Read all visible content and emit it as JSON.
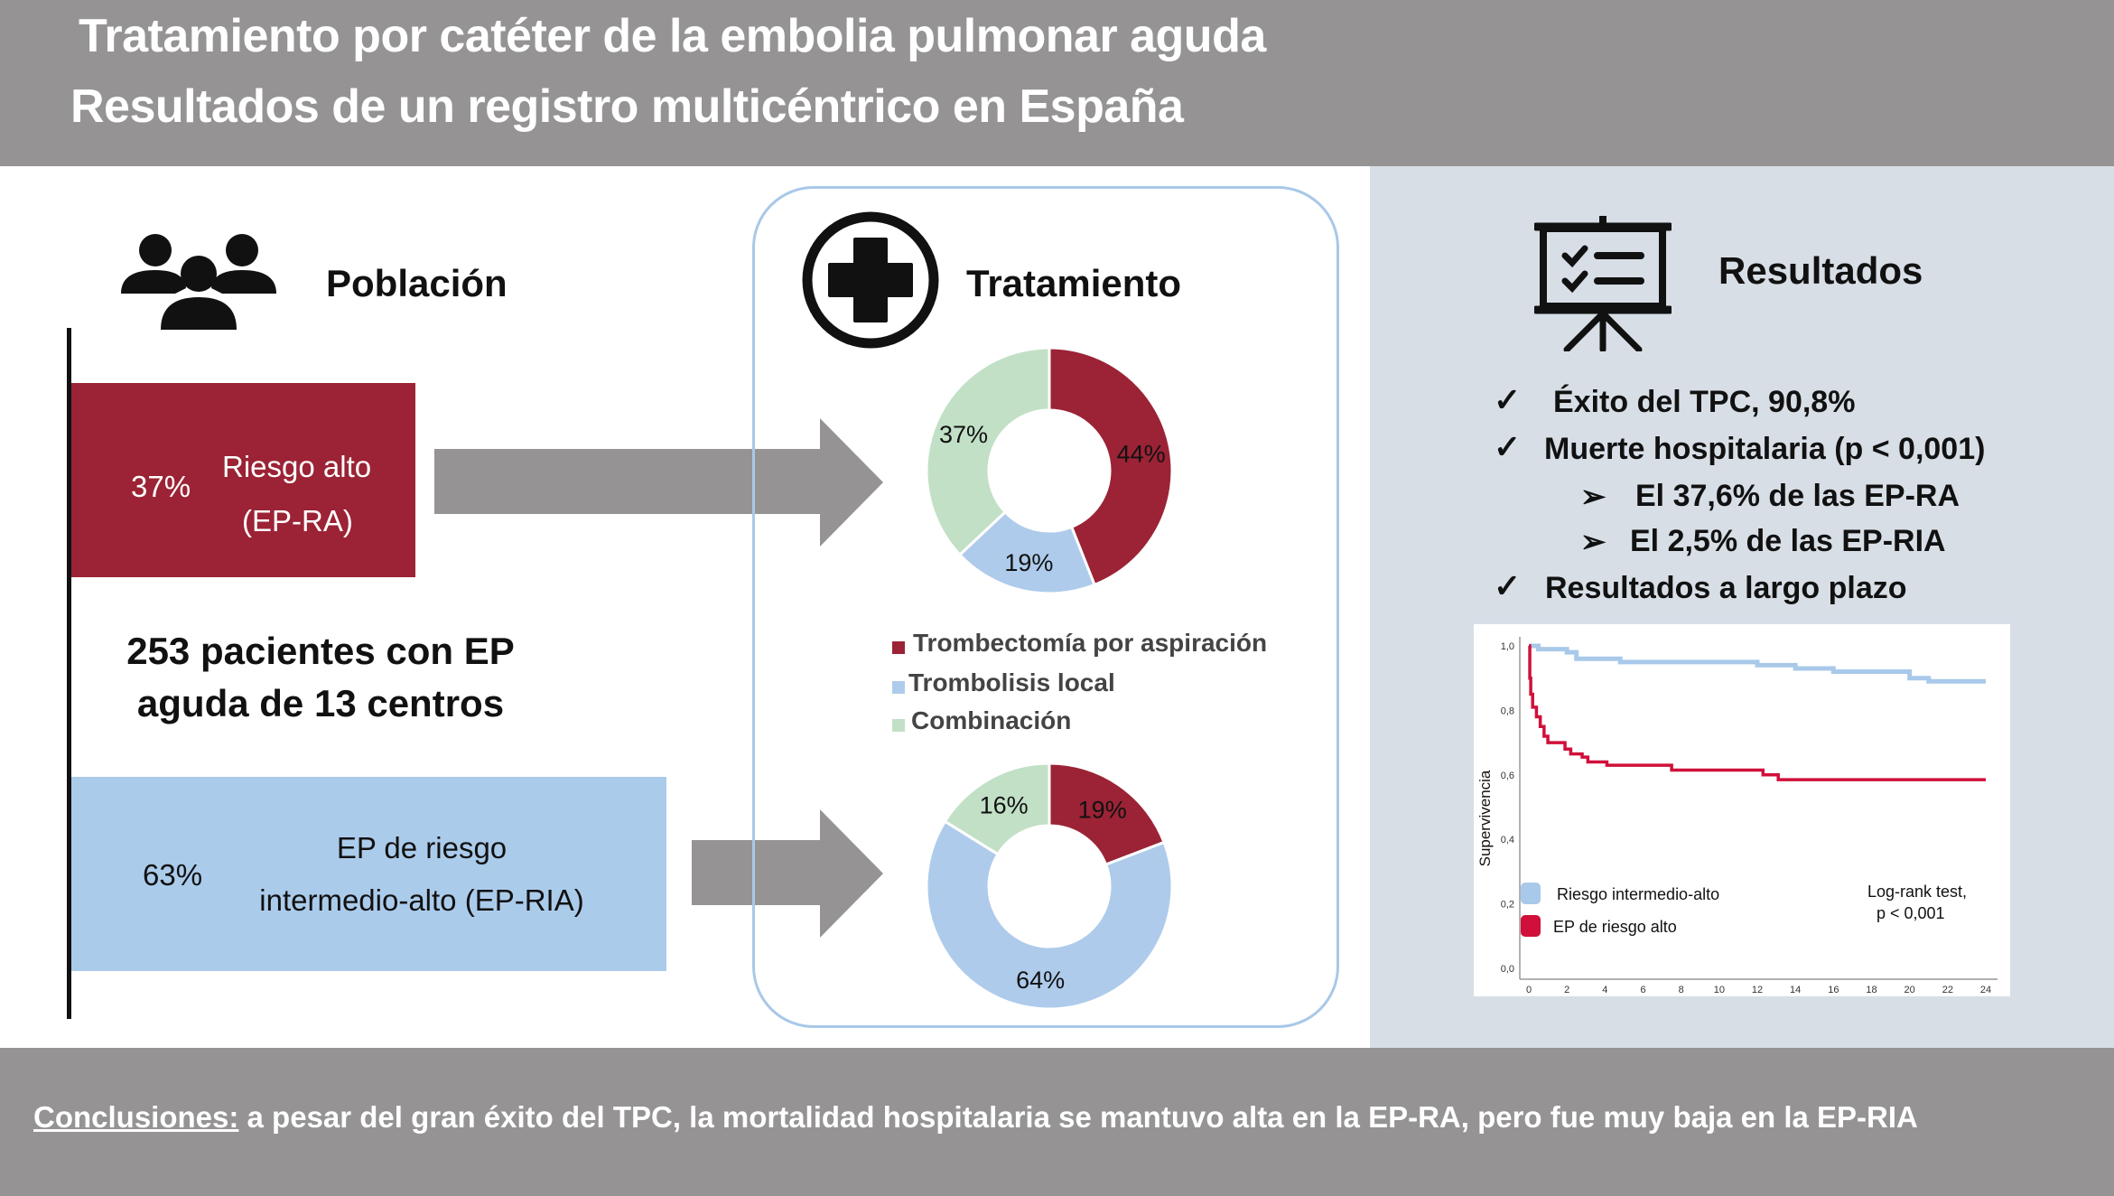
{
  "header": {
    "title_line1": "Tratamiento por catéter de la embolia pulmonar aguda",
    "title_line2": "Resultados de un registro multicéntrico en España"
  },
  "population": {
    "heading": "Población",
    "icon": "people-group-icon",
    "high_risk": {
      "percent": "37%",
      "label_line1": "Riesgo alto",
      "label_line2": "(EP-RA)",
      "color": "#9b2335"
    },
    "summary_line1": "253 pacientes con EP",
    "summary_line2": "aguda de 13 centros",
    "intermediate_risk": {
      "percent": "63%",
      "label_line1": "EP de riesgo",
      "label_line2": "intermedio-alto (EP-RIA)",
      "color": "#abcbeb"
    }
  },
  "treatment": {
    "heading": "Tratamiento",
    "icon": "medical-cross-icon",
    "legend": [
      {
        "label": "Trombectomía por aspiración",
        "color": "#9b2335"
      },
      {
        "label": "Trombolisis local",
        "color": "#aecbeb"
      },
      {
        "label": "Combinación",
        "color": "#c2e0c6"
      }
    ]
  },
  "chart_data": [
    {
      "type": "pie",
      "donut": true,
      "group": "EP-RA",
      "categories": [
        "Trombectomía por aspiración",
        "Trombolisis local",
        "Combinación"
      ],
      "values": [
        44,
        19,
        37
      ],
      "labels": [
        "44%",
        "19%",
        "37%"
      ]
    },
    {
      "type": "pie",
      "donut": true,
      "group": "EP-RIA",
      "categories": [
        "Trombectomía por aspiración",
        "Trombolisis local",
        "Combinación"
      ],
      "values": [
        19,
        64,
        16
      ],
      "labels": [
        "19%",
        "64%",
        "16%"
      ]
    },
    {
      "type": "line",
      "step": true,
      "ylabel": "Supervivencia",
      "xlabel": "",
      "xlim": [
        0,
        24
      ],
      "ylim": [
        0,
        1
      ],
      "xticks": [
        "0",
        "2",
        "4",
        "6",
        "8",
        "10",
        "12",
        "14",
        "16",
        "18",
        "20",
        "22",
        "24"
      ],
      "yticks": [
        "0,0",
        "0,2",
        "0,4",
        "0,6",
        "0,8",
        "1,0"
      ],
      "series": [
        {
          "name": "Riesgo intermedio-alto",
          "color": "#a9c9ea",
          "points": [
            [
              0,
              1.0
            ],
            [
              0.5,
              0.99
            ],
            [
              2,
              0.98
            ],
            [
              2.5,
              0.96
            ],
            [
              4.8,
              0.95
            ],
            [
              12,
              0.94
            ],
            [
              14,
              0.93
            ],
            [
              16,
              0.92
            ],
            [
              20,
              0.9
            ],
            [
              21,
              0.89
            ],
            [
              24,
              0.89
            ]
          ]
        },
        {
          "name": "EP de riesgo alto",
          "color": "#d0103a",
          "points": [
            [
              0,
              1.0
            ],
            [
              0.05,
              0.9
            ],
            [
              0.1,
              0.85
            ],
            [
              0.2,
              0.81
            ],
            [
              0.4,
              0.78
            ],
            [
              0.6,
              0.75
            ],
            [
              0.8,
              0.72
            ],
            [
              1,
              0.7
            ],
            [
              1.9,
              0.68
            ],
            [
              2.2,
              0.665
            ],
            [
              2.8,
              0.655
            ],
            [
              3.1,
              0.64
            ],
            [
              4.1,
              0.63
            ],
            [
              7.5,
              0.615
            ],
            [
              12.3,
              0.6
            ],
            [
              13.1,
              0.585
            ],
            [
              24,
              0.585
            ]
          ]
        }
      ],
      "annotation_line1": "Log-rank test,",
      "annotation_line2": "p < 0,001"
    }
  ],
  "results": {
    "heading": "Resultados",
    "icon": "presentation-board-icon",
    "items": [
      {
        "marker": "✓",
        "text": "Éxito del TPC, 90,8%"
      },
      {
        "marker": "✓",
        "text": "Muerte hospitalaria (p < 0,001)"
      },
      {
        "marker": "➢",
        "text": "El 37,6% de las EP-RA"
      },
      {
        "marker": "➢",
        "text": "El 2,5% de las EP-RIA"
      },
      {
        "marker": "✓",
        "text": "Resultados a largo plazo"
      }
    ]
  },
  "footer": {
    "label": "Conclusiones:",
    "text": " a pesar del gran éxito del TPC, la mortalidad hospitalaria se mantuvo alta en la EP-RA, pero fue muy baja en la EP-RIA"
  }
}
